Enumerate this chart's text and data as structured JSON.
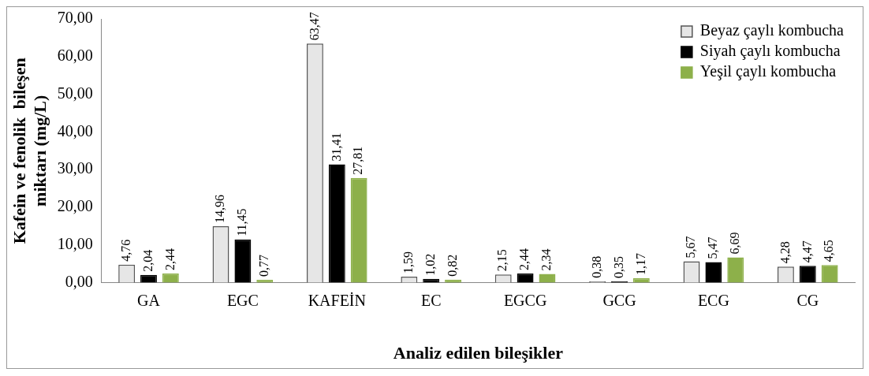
{
  "chart_data": {
    "type": "bar",
    "xlabel": "Analiz edilen bileşikler",
    "ylabel": "Kafein ve fenolik  bileşen miktarı (mg/L)",
    "categories": [
      "GA",
      "EGC",
      "KAFEİN",
      "EC",
      "EGCG",
      "GCG",
      "ECG",
      "CG"
    ],
    "series": [
      {
        "name": "Beyaz çaylı kombucha",
        "color": "#e6e6e6",
        "values": [
          4.76,
          14.96,
          63.47,
          1.59,
          2.15,
          0.38,
          5.67,
          4.28
        ],
        "value_labels": [
          "4,76",
          "14,96",
          "63,47",
          "1,59",
          "2,15",
          "0,38",
          "5,67",
          "4,28"
        ]
      },
      {
        "name": "Siyah çaylı kombucha",
        "color": "#000000",
        "values": [
          2.04,
          11.45,
          31.41,
          1.02,
          2.44,
          0.35,
          5.47,
          4.47
        ],
        "value_labels": [
          "2,04",
          "11,45",
          "31,41",
          "1,02",
          "2,44",
          "0,35",
          "5,47",
          "4,47"
        ]
      },
      {
        "name": "Yeşil çaylı kombucha",
        "color": "#8db04a",
        "values": [
          2.44,
          0.77,
          27.81,
          0.82,
          2.34,
          1.17,
          6.69,
          4.65
        ],
        "value_labels": [
          "2,44",
          "0,77",
          "27,81",
          "0,82",
          "2,34",
          "1,17",
          "6,69",
          "4,65"
        ]
      }
    ],
    "ylim": [
      0,
      70
    ],
    "yticks": [
      {
        "value": 0,
        "label": "0,00"
      },
      {
        "value": 10,
        "label": "10,00"
      },
      {
        "value": 20,
        "label": "20,00"
      },
      {
        "value": 30,
        "label": "30,00"
      },
      {
        "value": 40,
        "label": "40,00"
      },
      {
        "value": 50,
        "label": "50,00"
      },
      {
        "value": 60,
        "label": "60,00"
      },
      {
        "value": 70,
        "label": "70,00"
      }
    ],
    "legend": "top right"
  }
}
